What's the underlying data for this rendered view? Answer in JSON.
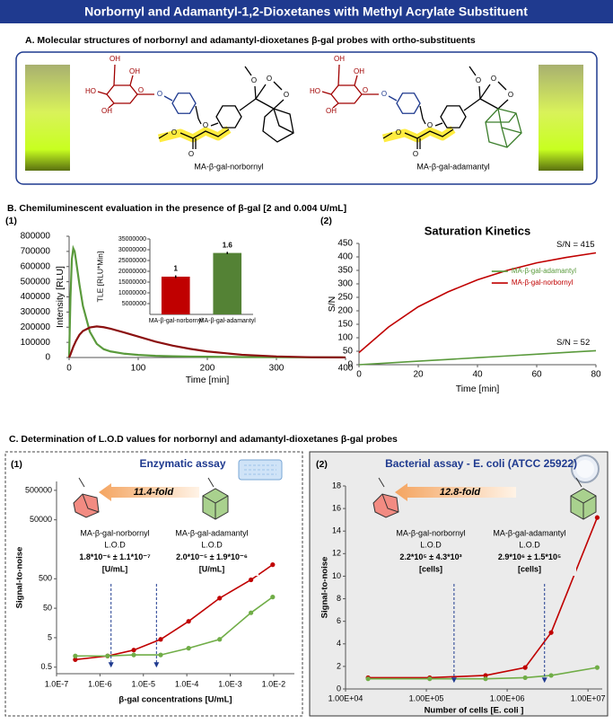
{
  "header": {
    "title": "Norbornyl and Adamantyl-1,2-Dioxetanes with Methyl Acrylate Substituent"
  },
  "panel_a": {
    "title": "A. Molecular structures of norbornyl and adamantyl-dioxetanes β-gal probes with ortho-substituents",
    "molecules": [
      {
        "name": "MA-β-gal-norbornyl",
        "atoms": [
          "OH",
          "OH",
          "HO",
          "OH",
          "O",
          "O",
          "O",
          "O",
          "O",
          "O",
          "O",
          "O"
        ]
      },
      {
        "name": "MA-β-gal-adamantyl",
        "atoms": [
          "OH",
          "OH",
          "HO",
          "OH",
          "O",
          "O",
          "O",
          "O",
          "O",
          "O",
          "O",
          "O"
        ]
      }
    ]
  },
  "panel_b": {
    "title": "B. Chemiluminescent evaluation in the presence of β-gal [2 and 0.004 U/mL]",
    "labels": [
      "(1)",
      "(2)"
    ]
  },
  "panel_c": {
    "title": "C. Determination of L.O.D values for norbornyl and adamantyl-dioxetanes β-gal probes",
    "labels": [
      "(1)",
      "(2)"
    ]
  },
  "chart_data": [
    {
      "type": "line",
      "x_label": "Time [min]",
      "y_label": "Intensity [RLU]",
      "x": [
        0,
        2,
        4,
        6,
        8,
        10,
        15,
        20,
        30,
        40,
        50,
        60,
        80,
        100,
        125,
        150,
        175,
        200,
        250,
        300,
        350,
        400
      ],
      "series": [
        {
          "color": "#5a9a3c",
          "values": [
            0,
            400000,
            650000,
            720000,
            700000,
            640000,
            480000,
            340000,
            170000,
            90000,
            55000,
            40000,
            25000,
            17000,
            11000,
            8000,
            6000,
            5000,
            3000,
            2000,
            1000,
            500
          ]
        },
        {
          "color": "#8b1010",
          "values": [
            0,
            20000,
            45000,
            70000,
            90000,
            110000,
            150000,
            175000,
            198000,
            205000,
            200000,
            190000,
            165000,
            138000,
            105000,
            78000,
            57000,
            40000,
            18000,
            7000,
            2000,
            500
          ]
        }
      ],
      "xlim": [
        0,
        400
      ],
      "xticks": [
        0,
        100,
        200,
        300,
        400
      ],
      "ylim": [
        0,
        800000
      ],
      "yticks": [
        0,
        100000,
        200000,
        300000,
        400000,
        500000,
        600000,
        700000,
        800000
      ]
    },
    {
      "type": "bar",
      "y_label": "TLE [RLU*Min]",
      "categories": [
        "MA-β-gal-norbornyl",
        "MA-β-gal-adamantyl"
      ],
      "values": [
        17500000,
        28500000
      ],
      "errors": [
        600000,
        500000
      ],
      "bar_labels": [
        "1",
        "1.6"
      ],
      "colors": [
        "#c00000",
        "#548235"
      ],
      "ylim": [
        0,
        35000000
      ],
      "yticks": [
        5000000,
        10000000,
        15000000,
        20000000,
        25000000,
        30000000,
        35000000
      ]
    },
    {
      "type": "line",
      "title": "Saturation Kinetics",
      "x_label": "Time [min]",
      "y_label": "S/N",
      "legend": "right",
      "x": [
        0,
        10,
        20,
        30,
        40,
        50,
        60,
        70,
        80
      ],
      "series": [
        {
          "name": "MA-β-gal-adamantyl",
          "color": "#5a9a3c",
          "values": [
            0,
            6.5,
            13,
            19.5,
            26,
            32.5,
            39,
            45.5,
            52
          ]
        },
        {
          "name": "MA-β-gal-norbornyl",
          "color": "#c00000",
          "values": [
            45,
            140,
            215,
            270,
            315,
            350,
            378,
            398,
            415
          ]
        }
      ],
      "annotations": [
        "S/N = 415",
        "S/N = 52"
      ],
      "xlim": [
        0,
        80
      ],
      "xticks": [
        0,
        20,
        40,
        60,
        80
      ],
      "ylim": [
        0,
        450
      ],
      "yticks": [
        0,
        50,
        100,
        150,
        200,
        250,
        300,
        350,
        400,
        450
      ]
    },
    {
      "type": "line",
      "title": "Enzymatic assay",
      "x_label": "β-gal concentrations [U/mL]",
      "y_label": "Signal-to-noise",
      "xscale": "log",
      "yscale": "log",
      "markers": true,
      "x": [
        2.7e-07,
        1.5e-06,
        6e-06,
        2.5e-05,
        0.00011,
        0.00057,
        0.003,
        0.0095
      ],
      "series": [
        {
          "color": "#c00000",
          "values": [
            0.9,
            1.2,
            1.9,
            4.4,
            18,
            110,
            460,
            1500
          ]
        },
        {
          "color": "#70ad47",
          "values": [
            1.2,
            1.2,
            1.3,
            1.3,
            2.2,
            4.4,
            35,
            120
          ]
        }
      ],
      "fold_label": "11.4-fold",
      "lod_entries": [
        {
          "name": "MA-β-gal-norbornyl",
          "label": "L.O.D",
          "value": "1.8*10⁻⁶ ± 1.1*10⁻⁷",
          "unit": "[U/mL]"
        },
        {
          "name": "MA-β-gal-adamantyl",
          "label": "L.O.D",
          "value": "2.0*10⁻⁵ ± 1.9*10⁻⁶",
          "unit": "[U/mL]"
        }
      ],
      "lod_values": [
        1.8e-06,
        2e-05
      ],
      "xlim": [
        1e-07,
        0.03
      ],
      "xticks": [
        {
          "value": 1e-07,
          "label": "1.0E-7"
        },
        {
          "value": 1e-06,
          "label": "1.0E-6"
        },
        {
          "value": 1e-05,
          "label": "1.0E-5"
        },
        {
          "value": 0.0001,
          "label": "1.0E-4"
        },
        {
          "value": 0.001,
          "label": "1.0E-3"
        },
        {
          "value": 0.01,
          "label": "1.0E-2"
        }
      ],
      "ylim": [
        0.3,
        1000000
      ],
      "yticks": [
        0.5,
        5,
        50,
        500,
        50000,
        500000
      ]
    },
    {
      "type": "line",
      "title": "Bacterial assay - E. coli (ATCC 25922)",
      "x_label": "Number of cells [E. coli ]",
      "y_label": "Signal-to-noise",
      "xscale": "log",
      "markers": true,
      "x": [
        19000,
        110000,
        540000,
        1670000,
        3500000,
        13000000
      ],
      "series": [
        {
          "color": "#c00000",
          "values": [
            1.0,
            1.0,
            1.2,
            1.9,
            5.0,
            15.2
          ]
        },
        {
          "color": "#70ad47",
          "values": [
            0.9,
            0.9,
            0.9,
            1.0,
            1.2,
            1.9
          ]
        }
      ],
      "fold_label": "12.8-fold",
      "lod_entries": [
        {
          "name": "MA-β-gal-norbornyl",
          "label": "L.O.D",
          "value": "2.2*10⁵ ± 4.3*10³",
          "unit": "[cells]"
        },
        {
          "name": "MA-β-gal-adamantyl",
          "label": "L.O.D",
          "value": "2.9*10⁶ ± 1.5*10⁵",
          "unit": "[cells]"
        }
      ],
      "lod_values": [
        220000,
        2900000
      ],
      "xlim": [
        10000,
        15000000
      ],
      "xticks": [
        {
          "value": 10000,
          "label": "1.00E+04"
        },
        {
          "value": 100000,
          "label": "1.00E+05"
        },
        {
          "value": 1000000,
          "label": "1.00E+06"
        },
        {
          "value": 10000000,
          "label": "1.00E+07"
        }
      ],
      "ylim": [
        0,
        18
      ],
      "yticks": [
        0,
        2,
        4,
        6,
        8,
        10,
        12,
        14,
        16,
        18
      ]
    }
  ]
}
